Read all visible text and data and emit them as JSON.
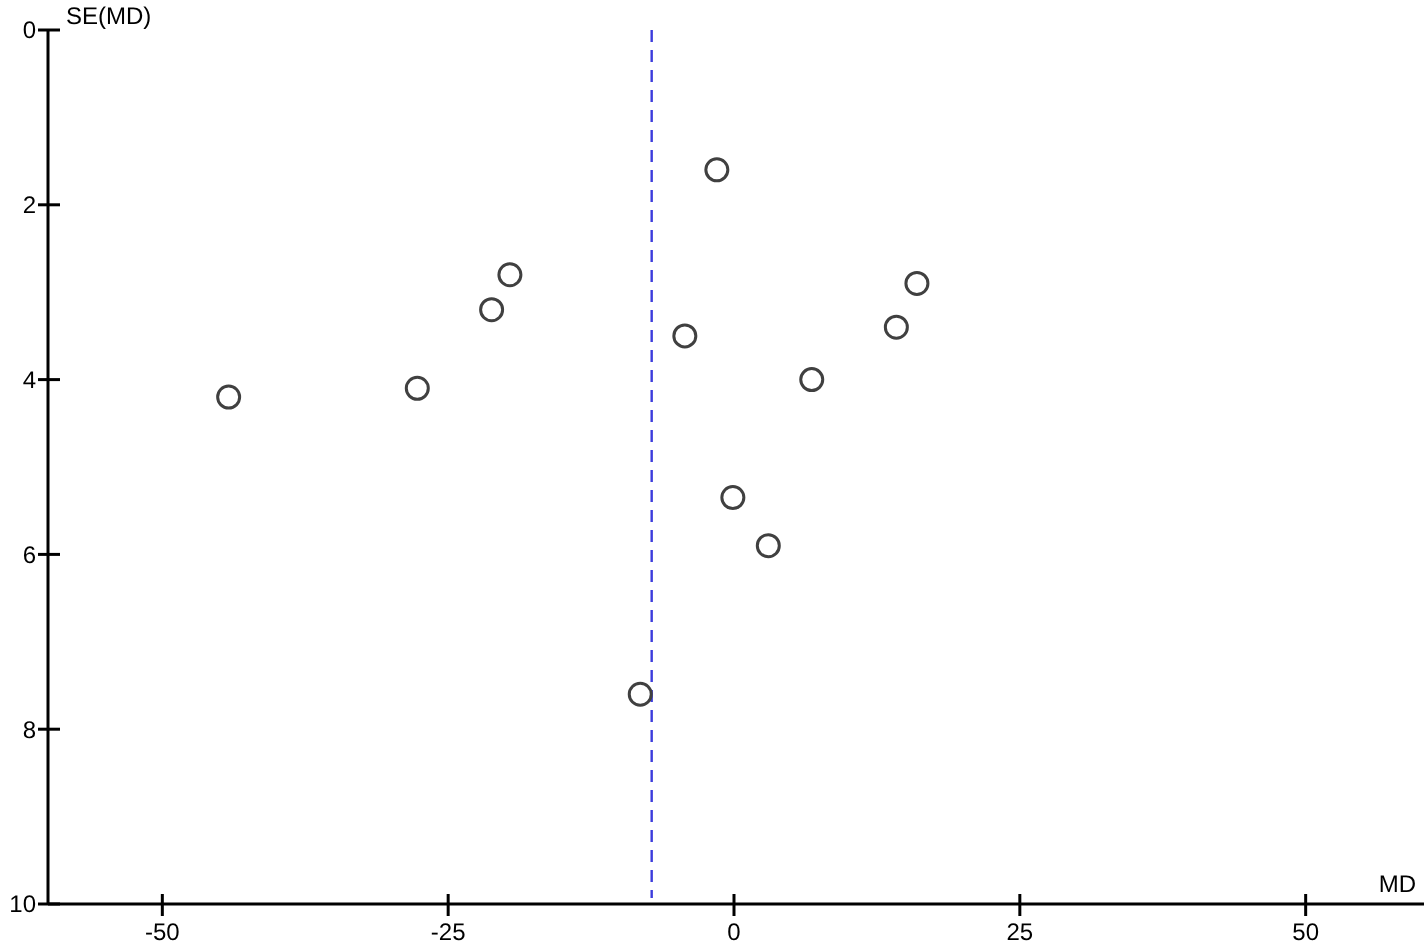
{
  "chart_data": {
    "type": "scatter",
    "xlabel": "MD",
    "ylabel": "SE(MD)",
    "x": [
      -1.5,
      -19.6,
      -21.2,
      -4.3,
      -44.2,
      -27.7,
      16.0,
      14.2,
      6.8,
      -0.1,
      3.0,
      -8.2
    ],
    "series": [
      {
        "color": "#404040",
        "values": [
          1.6,
          2.8,
          3.2,
          3.5,
          4.2,
          4.1,
          2.9,
          3.4,
          4.0,
          5.35,
          5.9,
          7.6
        ]
      }
    ],
    "xlim": [
      -60,
      60
    ],
    "ylim": [
      10,
      0
    ],
    "xticks": [
      -50,
      -25,
      0,
      25,
      50
    ],
    "yticks": [
      0,
      2,
      4,
      6,
      8,
      10
    ],
    "marker": "circle",
    "ref_lines": [
      {
        "axis": "x",
        "value": -7.2,
        "color": "#3c3cdc",
        "line_style": "dashed"
      }
    ]
  }
}
